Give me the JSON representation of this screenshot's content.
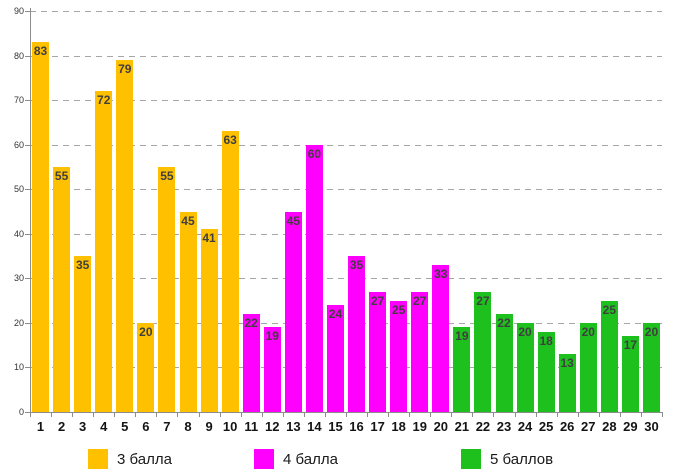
{
  "chart_data": {
    "type": "bar",
    "title": "",
    "xlabel": "",
    "ylabel": "",
    "ylim": [
      0,
      90
    ],
    "ytick_interval": 10,
    "grid": "horizontal-dashed",
    "legend_position": "bottom",
    "value_labels": "inside-top",
    "categories": [
      "1",
      "2",
      "3",
      "4",
      "5",
      "6",
      "7",
      "8",
      "9",
      "10",
      "11",
      "12",
      "13",
      "14",
      "15",
      "16",
      "17",
      "18",
      "19",
      "20",
      "21",
      "22",
      "23",
      "24",
      "25",
      "26",
      "27",
      "28",
      "29",
      "30"
    ],
    "series": [
      {
        "name": "3 балла",
        "color": "#FFC000",
        "values": [
          83,
          55,
          35,
          72,
          79,
          20,
          55,
          45,
          41,
          63
        ]
      },
      {
        "name": "4 балла",
        "color": "#FF00FF",
        "values": [
          22,
          19,
          45,
          60,
          24,
          35,
          27,
          25,
          27,
          33
        ]
      },
      {
        "name": "5 баллов",
        "color": "#1EC01E",
        "values": [
          19,
          27,
          22,
          20,
          18,
          13,
          20,
          25,
          17,
          20
        ]
      }
    ]
  },
  "legend": {
    "items": [
      {
        "label": "3 балла",
        "color": "#FFC000"
      },
      {
        "label": "4 балла",
        "color": "#FF00FF"
      },
      {
        "label": "5 баллов",
        "color": "#1EC01E"
      }
    ]
  }
}
